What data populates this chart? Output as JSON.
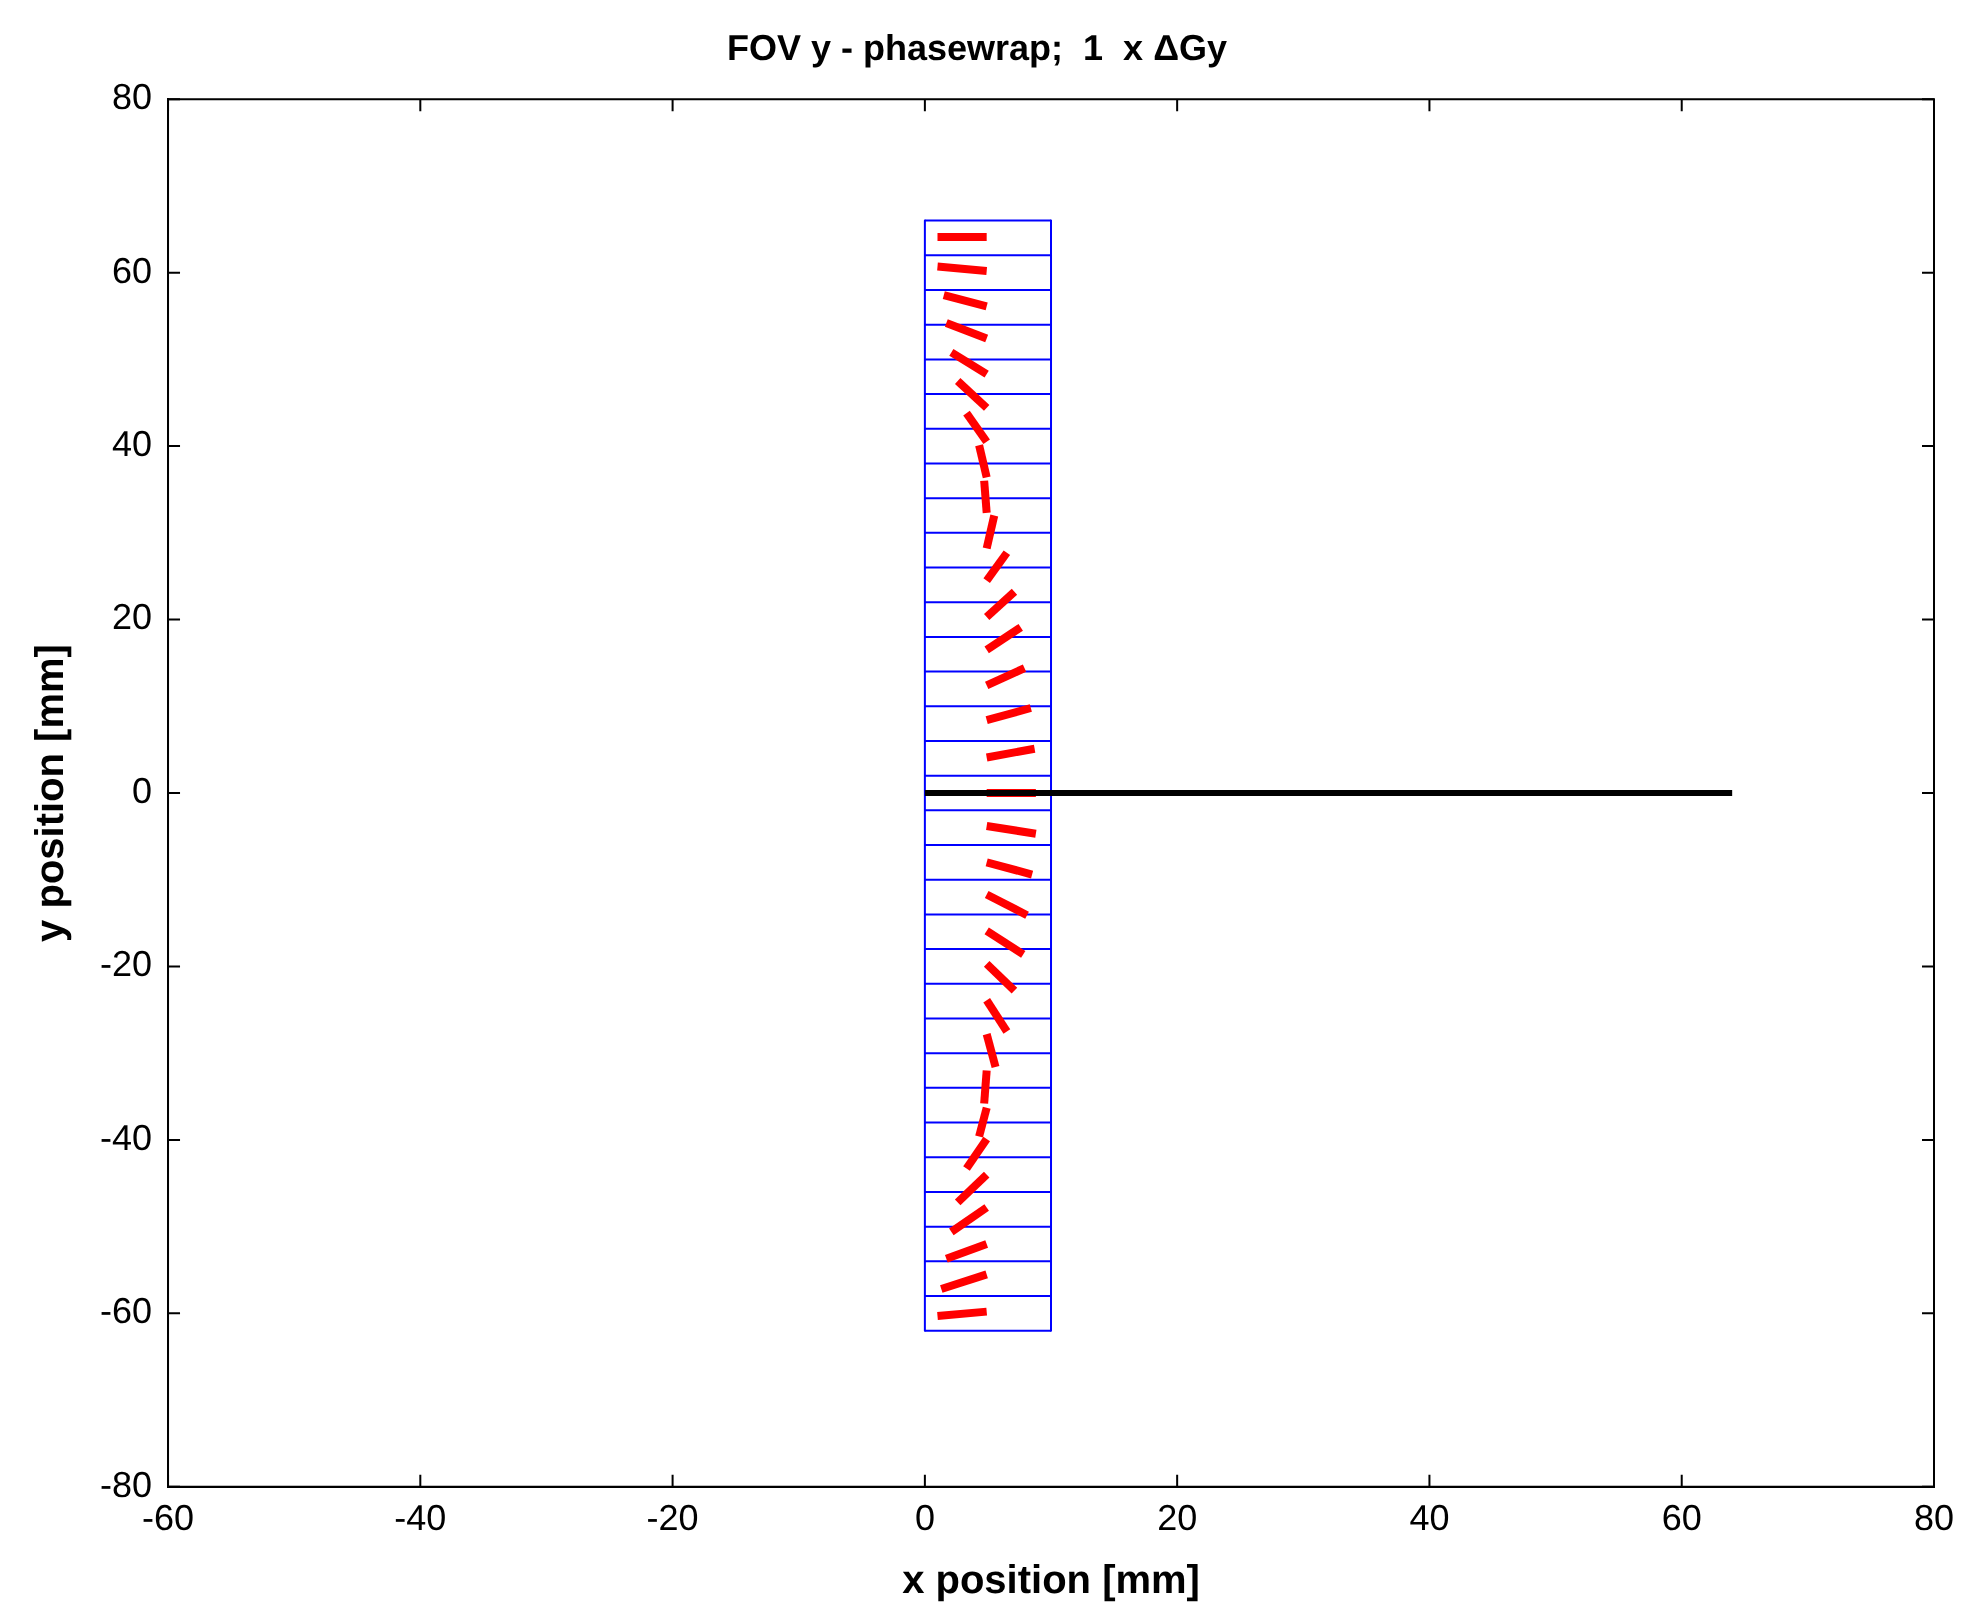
{
  "chart_data": {
    "type": "line",
    "title": "FOV y - phasewrap;  1  x ΔGy",
    "xlabel": "x position [mm]",
    "ylabel": "y position [mm]",
    "xlim": [
      -60,
      80
    ],
    "xticks": [
      -60,
      -40,
      -20,
      0,
      20,
      40,
      60,
      80
    ],
    "ylim": [
      -80,
      80
    ],
    "yticks": [
      -80,
      -60,
      -40,
      -20,
      0,
      20,
      40,
      60,
      80
    ],
    "grid": false,
    "legend": false,
    "marker": "none",
    "line_style": "solid",
    "series": [
      {
        "color": "#000000",
        "x": [
          0,
          64
        ],
        "values": [
          0,
          0
        ]
      },
      {
        "color": "#ff0000",
        "x": [
          1.0,
          4.9
        ],
        "values": [
          64.1,
          64.1
        ]
      },
      {
        "color": "#ff0000",
        "x": [
          1.0,
          4.9
        ],
        "values": [
          60.7,
          60.2
        ]
      },
      {
        "color": "#ff0000",
        "x": [
          1.5,
          4.9
        ],
        "values": [
          57.4,
          56.1
        ]
      },
      {
        "color": "#ff0000",
        "x": [
          1.7,
          4.9
        ],
        "values": [
          54.2,
          52.4
        ]
      },
      {
        "color": "#ff0000",
        "x": [
          2.1,
          4.9
        ],
        "values": [
          50.8,
          48.3
        ]
      },
      {
        "color": "#ff0000",
        "x": [
          2.6,
          4.9
        ],
        "values": [
          47.5,
          44.4
        ]
      },
      {
        "color": "#ff0000",
        "x": [
          3.3,
          4.9
        ],
        "values": [
          43.8,
          40.5
        ]
      },
      {
        "color": "#ff0000",
        "x": [
          4.3,
          4.9
        ],
        "values": [
          40.1,
          36.4
        ]
      },
      {
        "color": "#ff0000",
        "x": [
          4.7,
          4.9
        ],
        "values": [
          36.0,
          32.3
        ]
      },
      {
        "color": "#ff0000",
        "x": [
          5.5,
          4.9
        ],
        "values": [
          32.0,
          28.2
        ]
      },
      {
        "color": "#ff0000",
        "x": [
          6.5,
          4.9
        ],
        "values": [
          27.7,
          24.5
        ]
      },
      {
        "color": "#ff0000",
        "x": [
          7.1,
          4.9
        ],
        "values": [
          23.2,
          20.3
        ]
      },
      {
        "color": "#ff0000",
        "x": [
          7.6,
          4.9
        ],
        "values": [
          19.1,
          16.5
        ]
      },
      {
        "color": "#ff0000",
        "x": [
          7.9,
          4.9
        ],
        "values": [
          14.4,
          12.4
        ]
      },
      {
        "color": "#ff0000",
        "x": [
          8.4,
          4.9
        ],
        "values": [
          9.8,
          8.4
        ]
      },
      {
        "color": "#ff0000",
        "x": [
          8.7,
          4.9
        ],
        "values": [
          5.1,
          4.1
        ]
      },
      {
        "color": "#ff0000",
        "x": [
          8.8,
          4.9
        ],
        "values": [
          0,
          0
        ]
      },
      {
        "color": "#ff0000",
        "x": [
          8.8,
          4.9
        ],
        "values": [
          -4.7,
          -3.8
        ]
      },
      {
        "color": "#ff0000",
        "x": [
          8.5,
          4.9
        ],
        "values": [
          -9.4,
          -8.0
        ]
      },
      {
        "color": "#ff0000",
        "x": [
          8.1,
          4.9
        ],
        "values": [
          -14.1,
          -11.7
        ]
      },
      {
        "color": "#ff0000",
        "x": [
          7.8,
          4.9
        ],
        "values": [
          -18.6,
          -15.9
        ]
      },
      {
        "color": "#ff0000",
        "x": [
          7.1,
          4.9
        ],
        "values": [
          -22.8,
          -19.7
        ]
      },
      {
        "color": "#ff0000",
        "x": [
          6.5,
          4.9
        ],
        "values": [
          -27.5,
          -23.9
        ]
      },
      {
        "color": "#ff0000",
        "x": [
          5.6,
          4.9
        ],
        "values": [
          -31.6,
          -27.8
        ]
      },
      {
        "color": "#ff0000",
        "x": [
          4.7,
          4.9
        ],
        "values": [
          -35.8,
          -32.0
        ]
      },
      {
        "color": "#ff0000",
        "x": [
          4.3,
          4.9
        ],
        "values": [
          -39.6,
          -36.3
        ]
      },
      {
        "color": "#ff0000",
        "x": [
          3.3,
          4.9
        ],
        "values": [
          -43.3,
          -39.9
        ]
      },
      {
        "color": "#ff0000",
        "x": [
          2.6,
          4.9
        ],
        "values": [
          -47.2,
          -44.0
        ]
      },
      {
        "color": "#ff0000",
        "x": [
          2.1,
          4.9
        ],
        "values": [
          -50.6,
          -47.8
        ]
      },
      {
        "color": "#ff0000",
        "x": [
          1.7,
          4.9
        ],
        "values": [
          -53.7,
          -52.0
        ]
      },
      {
        "color": "#ff0000",
        "x": [
          1.3,
          4.9
        ],
        "values": [
          -57.2,
          -55.5
        ]
      },
      {
        "color": "#ff0000",
        "x": [
          1.0,
          4.9
        ],
        "values": [
          -60.3,
          -59.8
        ]
      },
      {
        "color": "#0000ff",
        "x": [
          0,
          0
        ],
        "values": [
          66,
          -62
        ]
      },
      {
        "color": "#0000ff",
        "x": [
          10,
          10
        ],
        "values": [
          66,
          -62
        ]
      },
      {
        "color": "#0000ff",
        "x": [
          0,
          10
        ],
        "values": [
          66,
          66
        ]
      },
      {
        "color": "#0000ff",
        "x": [
          0,
          10
        ],
        "values": [
          62,
          62
        ]
      },
      {
        "color": "#0000ff",
        "x": [
          0,
          10
        ],
        "values": [
          58,
          58
        ]
      },
      {
        "color": "#0000ff",
        "x": [
          0,
          10
        ],
        "values": [
          54,
          54
        ]
      },
      {
        "color": "#0000ff",
        "x": [
          0,
          10
        ],
        "values": [
          50,
          50
        ]
      },
      {
        "color": "#0000ff",
        "x": [
          0,
          10
        ],
        "values": [
          46,
          46
        ]
      },
      {
        "color": "#0000ff",
        "x": [
          0,
          10
        ],
        "values": [
          42,
          42
        ]
      },
      {
        "color": "#0000ff",
        "x": [
          0,
          10
        ],
        "values": [
          38,
          38
        ]
      },
      {
        "color": "#0000ff",
        "x": [
          0,
          10
        ],
        "values": [
          34,
          34
        ]
      },
      {
        "color": "#0000ff",
        "x": [
          0,
          10
        ],
        "values": [
          30,
          30
        ]
      },
      {
        "color": "#0000ff",
        "x": [
          0,
          10
        ],
        "values": [
          26,
          26
        ]
      },
      {
        "color": "#0000ff",
        "x": [
          0,
          10
        ],
        "values": [
          22,
          22
        ]
      },
      {
        "color": "#0000ff",
        "x": [
          0,
          10
        ],
        "values": [
          18,
          18
        ]
      },
      {
        "color": "#0000ff",
        "x": [
          0,
          10
        ],
        "values": [
          14,
          14
        ]
      },
      {
        "color": "#0000ff",
        "x": [
          0,
          10
        ],
        "values": [
          10,
          10
        ]
      },
      {
        "color": "#0000ff",
        "x": [
          0,
          10
        ],
        "values": [
          6,
          6
        ]
      },
      {
        "color": "#0000ff",
        "x": [
          0,
          10
        ],
        "values": [
          2,
          2
        ]
      },
      {
        "color": "#0000ff",
        "x": [
          0,
          10
        ],
        "values": [
          -2,
          -2
        ]
      },
      {
        "color": "#0000ff",
        "x": [
          0,
          10
        ],
        "values": [
          -6,
          -6
        ]
      },
      {
        "color": "#0000ff",
        "x": [
          0,
          10
        ],
        "values": [
          -10,
          -10
        ]
      },
      {
        "color": "#0000ff",
        "x": [
          0,
          10
        ],
        "values": [
          -14,
          -14
        ]
      },
      {
        "color": "#0000ff",
        "x": [
          0,
          10
        ],
        "values": [
          -18,
          -18
        ]
      },
      {
        "color": "#0000ff",
        "x": [
          0,
          10
        ],
        "values": [
          -22,
          -22
        ]
      },
      {
        "color": "#0000ff",
        "x": [
          0,
          10
        ],
        "values": [
          -26,
          -26
        ]
      },
      {
        "color": "#0000ff",
        "x": [
          0,
          10
        ],
        "values": [
          -30,
          -30
        ]
      },
      {
        "color": "#0000ff",
        "x": [
          0,
          10
        ],
        "values": [
          -34,
          -34
        ]
      },
      {
        "color": "#0000ff",
        "x": [
          0,
          10
        ],
        "values": [
          -38,
          -38
        ]
      },
      {
        "color": "#0000ff",
        "x": [
          0,
          10
        ],
        "values": [
          -42,
          -42
        ]
      },
      {
        "color": "#0000ff",
        "x": [
          0,
          10
        ],
        "values": [
          -46,
          -46
        ]
      },
      {
        "color": "#0000ff",
        "x": [
          0,
          10
        ],
        "values": [
          -50,
          -50
        ]
      },
      {
        "color": "#0000ff",
        "x": [
          0,
          10
        ],
        "values": [
          -54,
          -54
        ]
      },
      {
        "color": "#0000ff",
        "x": [
          0,
          10
        ],
        "values": [
          -58,
          -58
        ]
      },
      {
        "color": "#0000ff",
        "x": [
          0,
          10
        ],
        "values": [
          -62,
          -62
        ]
      }
    ]
  }
}
